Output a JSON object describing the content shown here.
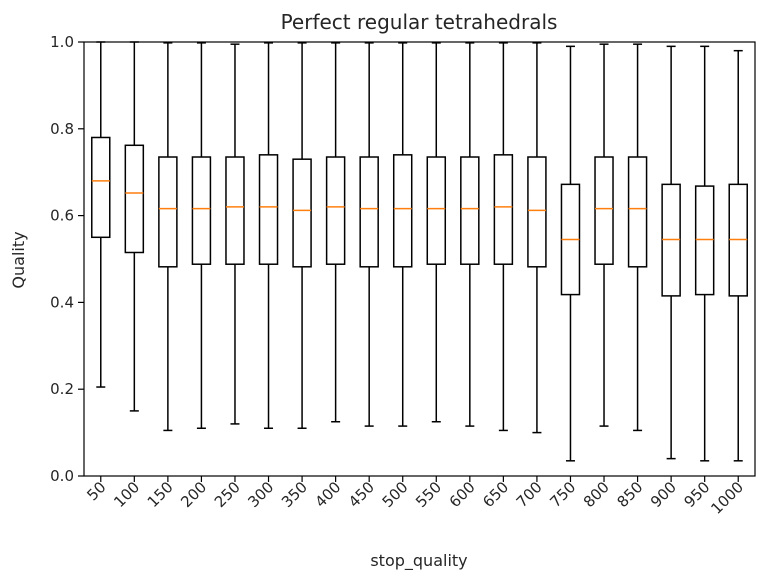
{
  "chart_data": {
    "type": "box",
    "title": "Perfect regular tetrahedrals",
    "xlabel": "stop_quality",
    "ylabel": "Quality",
    "ylim": [
      0.0,
      1.0
    ],
    "yticks": [
      "0.0",
      "0.2",
      "0.4",
      "0.6",
      "0.8",
      "1.0"
    ],
    "categories": [
      "50",
      "100",
      "150",
      "200",
      "250",
      "300",
      "350",
      "400",
      "450",
      "500",
      "550",
      "600",
      "650",
      "700",
      "750",
      "800",
      "850",
      "900",
      "950",
      "1000"
    ],
    "boxes": [
      {
        "whisker_low": 0.205,
        "q1": 0.55,
        "median": 0.68,
        "q3": 0.78,
        "whisker_high": 1.0
      },
      {
        "whisker_low": 0.15,
        "q1": 0.515,
        "median": 0.652,
        "q3": 0.762,
        "whisker_high": 1.0
      },
      {
        "whisker_low": 0.105,
        "q1": 0.482,
        "median": 0.616,
        "q3": 0.735,
        "whisker_high": 0.998
      },
      {
        "whisker_low": 0.11,
        "q1": 0.488,
        "median": 0.616,
        "q3": 0.735,
        "whisker_high": 0.998
      },
      {
        "whisker_low": 0.12,
        "q1": 0.488,
        "median": 0.62,
        "q3": 0.735,
        "whisker_high": 0.995
      },
      {
        "whisker_low": 0.11,
        "q1": 0.488,
        "median": 0.62,
        "q3": 0.74,
        "whisker_high": 0.998
      },
      {
        "whisker_low": 0.11,
        "q1": 0.482,
        "median": 0.612,
        "q3": 0.73,
        "whisker_high": 0.998
      },
      {
        "whisker_low": 0.125,
        "q1": 0.488,
        "median": 0.62,
        "q3": 0.735,
        "whisker_high": 0.998
      },
      {
        "whisker_low": 0.115,
        "q1": 0.482,
        "median": 0.616,
        "q3": 0.735,
        "whisker_high": 0.998
      },
      {
        "whisker_low": 0.115,
        "q1": 0.482,
        "median": 0.616,
        "q3": 0.74,
        "whisker_high": 0.998
      },
      {
        "whisker_low": 0.125,
        "q1": 0.488,
        "median": 0.616,
        "q3": 0.735,
        "whisker_high": 0.998
      },
      {
        "whisker_low": 0.115,
        "q1": 0.488,
        "median": 0.616,
        "q3": 0.735,
        "whisker_high": 0.998
      },
      {
        "whisker_low": 0.105,
        "q1": 0.488,
        "median": 0.62,
        "q3": 0.74,
        "whisker_high": 0.998
      },
      {
        "whisker_low": 0.1,
        "q1": 0.482,
        "median": 0.612,
        "q3": 0.735,
        "whisker_high": 0.998
      },
      {
        "whisker_low": 0.035,
        "q1": 0.418,
        "median": 0.545,
        "q3": 0.672,
        "whisker_high": 0.99
      },
      {
        "whisker_low": 0.115,
        "q1": 0.488,
        "median": 0.616,
        "q3": 0.735,
        "whisker_high": 0.995
      },
      {
        "whisker_low": 0.105,
        "q1": 0.482,
        "median": 0.616,
        "q3": 0.735,
        "whisker_high": 0.995
      },
      {
        "whisker_low": 0.04,
        "q1": 0.415,
        "median": 0.545,
        "q3": 0.672,
        "whisker_high": 0.99
      },
      {
        "whisker_low": 0.035,
        "q1": 0.418,
        "median": 0.545,
        "q3": 0.668,
        "whisker_high": 0.99
      },
      {
        "whisker_low": 0.035,
        "q1": 0.415,
        "median": 0.545,
        "q3": 0.672,
        "whisker_high": 0.98
      }
    ],
    "grid": false,
    "colors": {
      "box": "#000000",
      "median": "#ff7f0e",
      "axes": "#000000",
      "text": "#262626"
    }
  }
}
